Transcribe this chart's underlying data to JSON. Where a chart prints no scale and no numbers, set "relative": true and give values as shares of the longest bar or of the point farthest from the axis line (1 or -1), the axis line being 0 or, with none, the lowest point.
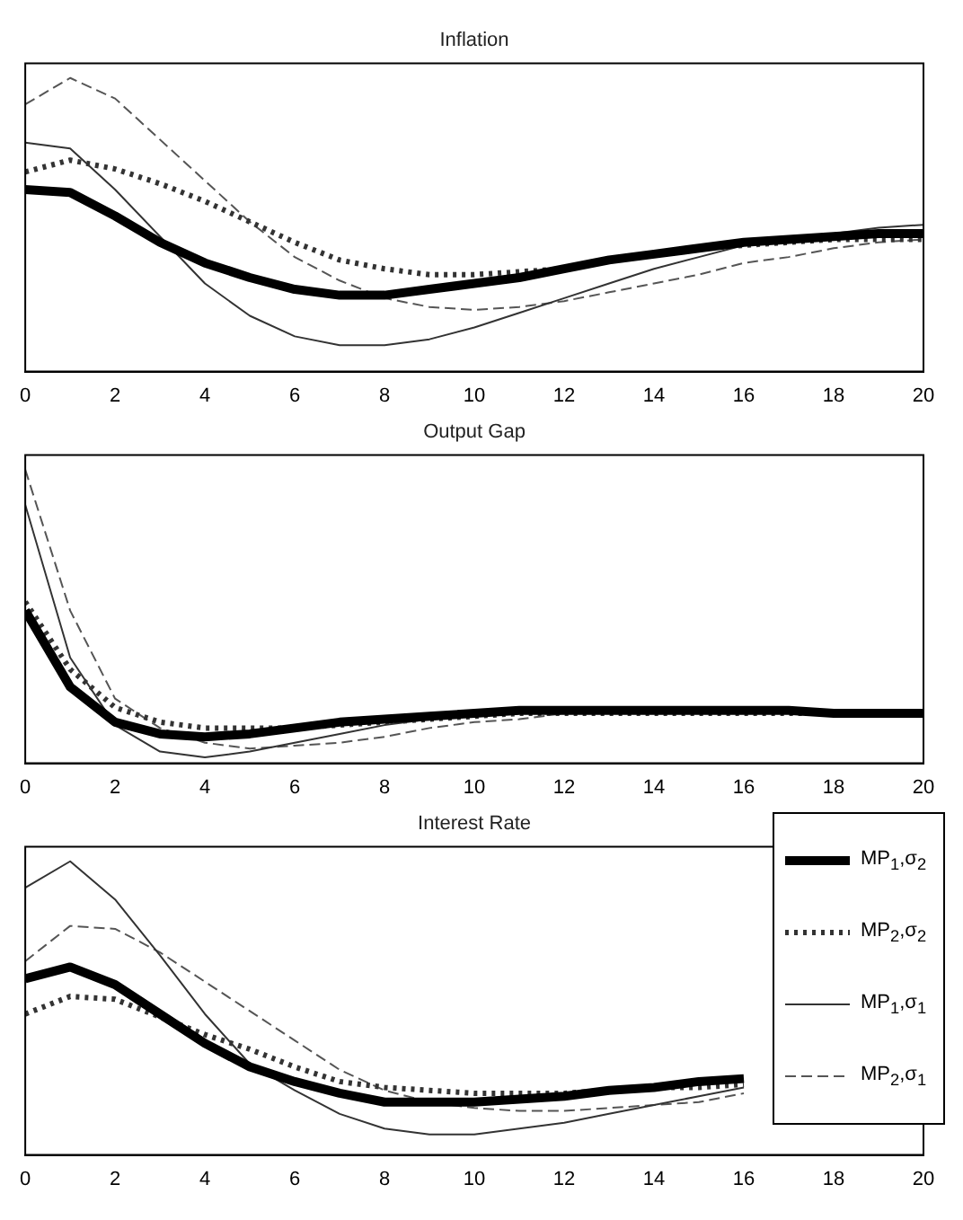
{
  "chart_data": [
    {
      "type": "line",
      "title": "Inflation",
      "x": [
        0,
        1,
        2,
        3,
        4,
        5,
        6,
        7,
        8,
        9,
        10,
        11,
        12,
        13,
        14,
        15,
        16,
        17,
        18,
        19,
        20
      ],
      "xlim": [
        0,
        20
      ],
      "xticks": [
        0,
        2,
        4,
        6,
        8,
        10,
        12,
        14,
        16,
        18,
        20
      ],
      "relative": true,
      "series": [
        {
          "color": "#000000",
          "line_style": "solid",
          "values": [
            0.62,
            0.61,
            0.53,
            0.44,
            0.37,
            0.32,
            0.28,
            0.26,
            0.26,
            0.28,
            0.3,
            0.32,
            0.35,
            0.38,
            0.4,
            0.42,
            0.44,
            0.45,
            0.46,
            0.47,
            0.47
          ]
        },
        {
          "color": "#333333",
          "line_style": "dotted",
          "values": [
            0.68,
            0.72,
            0.69,
            0.64,
            0.58,
            0.51,
            0.44,
            0.38,
            0.35,
            0.33,
            0.33,
            0.34,
            0.35,
            0.38,
            0.4,
            0.42,
            0.43,
            0.44,
            0.45,
            0.45,
            0.45
          ]
        },
        {
          "color": "#333333",
          "line_style": "solid",
          "values": [
            0.78,
            0.76,
            0.62,
            0.46,
            0.3,
            0.19,
            0.12,
            0.09,
            0.09,
            0.11,
            0.15,
            0.2,
            0.25,
            0.3,
            0.35,
            0.39,
            0.43,
            0.45,
            0.47,
            0.49,
            0.5
          ]
        },
        {
          "color": "#555555",
          "line_style": "dashed",
          "values": [
            0.91,
            1,
            0.93,
            0.79,
            0.65,
            0.51,
            0.39,
            0.31,
            0.25,
            0.22,
            0.21,
            0.22,
            0.24,
            0.27,
            0.3,
            0.33,
            0.37,
            0.39,
            0.42,
            0.44,
            0.45
          ]
        }
      ]
    },
    {
      "type": "line",
      "title": "Output Gap",
      "x": [
        0,
        1,
        2,
        3,
        4,
        5,
        6,
        7,
        8,
        9,
        10,
        11,
        12,
        13,
        14,
        15,
        16,
        17,
        18,
        19,
        20
      ],
      "xlim": [
        0,
        20
      ],
      "xticks": [
        0,
        2,
        4,
        6,
        8,
        10,
        12,
        14,
        16,
        18,
        20
      ],
      "relative": true,
      "series": [
        {
          "color": "#000000",
          "line_style": "solid",
          "values": [
            0.52,
            0.26,
            0.14,
            0.1,
            0.09,
            0.1,
            0.12,
            0.14,
            0.15,
            0.16,
            0.17,
            0.18,
            0.18,
            0.18,
            0.18,
            0.18,
            0.18,
            0.18,
            0.17,
            0.17,
            0.17
          ]
        },
        {
          "color": "#333333",
          "line_style": "dotted",
          "values": [
            0.55,
            0.32,
            0.19,
            0.14,
            0.12,
            0.12,
            0.12,
            0.13,
            0.14,
            0.15,
            0.16,
            0.17,
            0.17,
            0.17,
            0.17,
            0.17,
            0.17,
            0.17,
            0.17,
            0.17,
            0.17
          ]
        },
        {
          "color": "#333333",
          "line_style": "solid",
          "values": [
            0.88,
            0.36,
            0.13,
            0.04,
            0.02,
            0.04,
            0.07,
            0.1,
            0.13,
            0.15,
            0.16,
            0.17,
            0.17,
            0.18,
            0.18,
            0.17,
            0.17,
            0.17,
            0.17,
            0.17,
            0.17
          ]
        },
        {
          "color": "#555555",
          "line_style": "dashed",
          "values": [
            1,
            0.52,
            0.22,
            0.12,
            0.07,
            0.05,
            0.06,
            0.07,
            0.09,
            0.12,
            0.14,
            0.15,
            0.17,
            0.17,
            0.17,
            0.17,
            0.17,
            0.17,
            0.17,
            0.17,
            0.17
          ]
        }
      ]
    },
    {
      "type": "line",
      "title": "Interest Rate",
      "x": [
        0,
        1,
        2,
        3,
        4,
        5,
        6,
        7,
        8,
        9,
        10,
        11,
        12,
        13,
        14,
        15,
        16
      ],
      "xlim": [
        0,
        20
      ],
      "xticks": [
        0,
        2,
        4,
        6,
        8,
        10,
        12,
        14,
        16,
        18,
        20
      ],
      "relative": true,
      "legend": "right",
      "series": [
        {
          "name": "MP$_{1}$,σ$_{2}$",
          "color": "#000000",
          "line_style": "solid",
          "values": [
            0.6,
            0.64,
            0.58,
            0.48,
            0.38,
            0.3,
            0.25,
            0.21,
            0.18,
            0.18,
            0.18,
            0.19,
            0.2,
            0.22,
            0.23,
            0.25,
            0.26
          ]
        },
        {
          "name": "MP$_{2}$,σ$_{2}$",
          "color": "#333333",
          "line_style": "dotted",
          "values": [
            0.48,
            0.54,
            0.53,
            0.47,
            0.41,
            0.36,
            0.3,
            0.25,
            0.23,
            0.22,
            0.21,
            0.21,
            0.21,
            0.22,
            0.23,
            0.23,
            0.24
          ]
        },
        {
          "name": "MP$_{1}$,σ$_{1}$",
          "color": "#333333",
          "line_style": "solid",
          "values": [
            0.91,
            1,
            0.87,
            0.68,
            0.48,
            0.31,
            0.22,
            0.14,
            0.09,
            0.07,
            0.07,
            0.09,
            0.11,
            0.14,
            0.17,
            0.2,
            0.23
          ]
        },
        {
          "name": "MP$_{2}$,σ$_{1}$",
          "color": "#555555",
          "line_style": "dashed",
          "values": [
            0.66,
            0.78,
            0.77,
            0.69,
            0.59,
            0.49,
            0.39,
            0.29,
            0.22,
            0.18,
            0.16,
            0.15,
            0.15,
            0.16,
            0.17,
            0.18,
            0.21
          ]
        }
      ]
    }
  ]
}
